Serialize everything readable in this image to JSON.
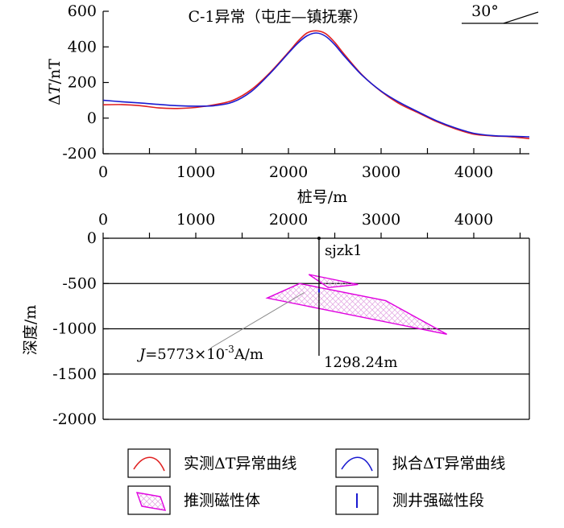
{
  "chart_data": [
    {
      "type": "line",
      "title": "C-1异常（屯庄—镇抚寨）",
      "strike_label": "30°",
      "xlabel": "桩号/m",
      "ylabel_prefix": "Δ",
      "ylabel_italic": "T",
      "ylabel_suffix": "/nT",
      "xlim": [
        0,
        4600
      ],
      "ylim": [
        -200,
        600
      ],
      "xticks": [
        0,
        1000,
        2000,
        3000,
        4000
      ],
      "yticks": [
        600,
        400,
        200,
        0,
        -200
      ],
      "series": [
        {
          "name": "实测ΔT异常曲线",
          "color": "#e02020",
          "x": [
            0,
            200,
            400,
            600,
            800,
            1000,
            1200,
            1400,
            1600,
            1800,
            2000,
            2100,
            2200,
            2300,
            2400,
            2500,
            2600,
            2800,
            3000,
            3200,
            3400,
            3600,
            3800,
            4000,
            4200,
            4400,
            4600
          ],
          "y": [
            75,
            76,
            70,
            57,
            54,
            60,
            75,
            100,
            160,
            255,
            370,
            430,
            478,
            490,
            475,
            425,
            360,
            240,
            150,
            80,
            30,
            -20,
            -60,
            -90,
            -100,
            -105,
            -115
          ]
        },
        {
          "name": "拟合ΔT异常曲线",
          "color": "#1a1ad0",
          "x": [
            0,
            200,
            400,
            600,
            800,
            1000,
            1200,
            1400,
            1600,
            1800,
            2000,
            2100,
            2200,
            2300,
            2400,
            2500,
            2600,
            2800,
            3000,
            3200,
            3400,
            3600,
            3800,
            4000,
            4200,
            4400,
            4600
          ],
          "y": [
            100,
            92,
            85,
            77,
            70,
            67,
            70,
            90,
            150,
            250,
            365,
            420,
            462,
            478,
            460,
            412,
            350,
            238,
            152,
            88,
            35,
            -15,
            -55,
            -85,
            -98,
            -102,
            -105
          ]
        }
      ]
    },
    {
      "type": "line",
      "ylabel": "深度/m",
      "xlim": [
        0,
        4600
      ],
      "ylim": [
        -2000,
        0
      ],
      "xticks": [
        0,
        1000,
        2000,
        3000,
        4000
      ],
      "yticks": [
        0,
        -500,
        -1000,
        -1500,
        -2000
      ],
      "yticklabels": [
        "0",
        "-500",
        "-1000",
        "-1500",
        "-2000"
      ],
      "grid": true,
      "bodies": [
        {
          "name": "推测磁性体",
          "points": [
            [
              2220,
              -400
            ],
            [
              2750,
              -510
            ],
            [
              2430,
              -545
            ],
            [
              2220,
              -400
            ]
          ]
        },
        {
          "name": "推测磁性体",
          "points": [
            [
              1770,
              -660
            ],
            [
              2120,
              -500
            ],
            [
              3050,
              -690
            ],
            [
              3710,
              -1060
            ],
            [
              1770,
              -660
            ]
          ]
        }
      ],
      "borehole": {
        "name": "sjzk1",
        "x": 2330,
        "depth_bottom": -1298.24,
        "depth_label": "1298.24m",
        "strong_segment": [
          -560,
          -600
        ]
      },
      "annotation": {
        "prefix_italic": "J",
        "text": "=5773×10",
        "sup": "-3",
        "suffix": "A/m",
        "target": [
          2170,
          -600
        ]
      }
    }
  ],
  "legend": {
    "items": [
      {
        "label": "实测ΔT异常曲线",
        "kind": "line",
        "color": "#e02020"
      },
      {
        "label": "拟合ΔT异常曲线",
        "kind": "line",
        "color": "#1a1ad0"
      },
      {
        "label": "推测磁性体",
        "kind": "body",
        "color": "#e000e0"
      },
      {
        "label": "测井强磁性段",
        "kind": "borehole",
        "color": "#1a1ad0"
      }
    ]
  }
}
